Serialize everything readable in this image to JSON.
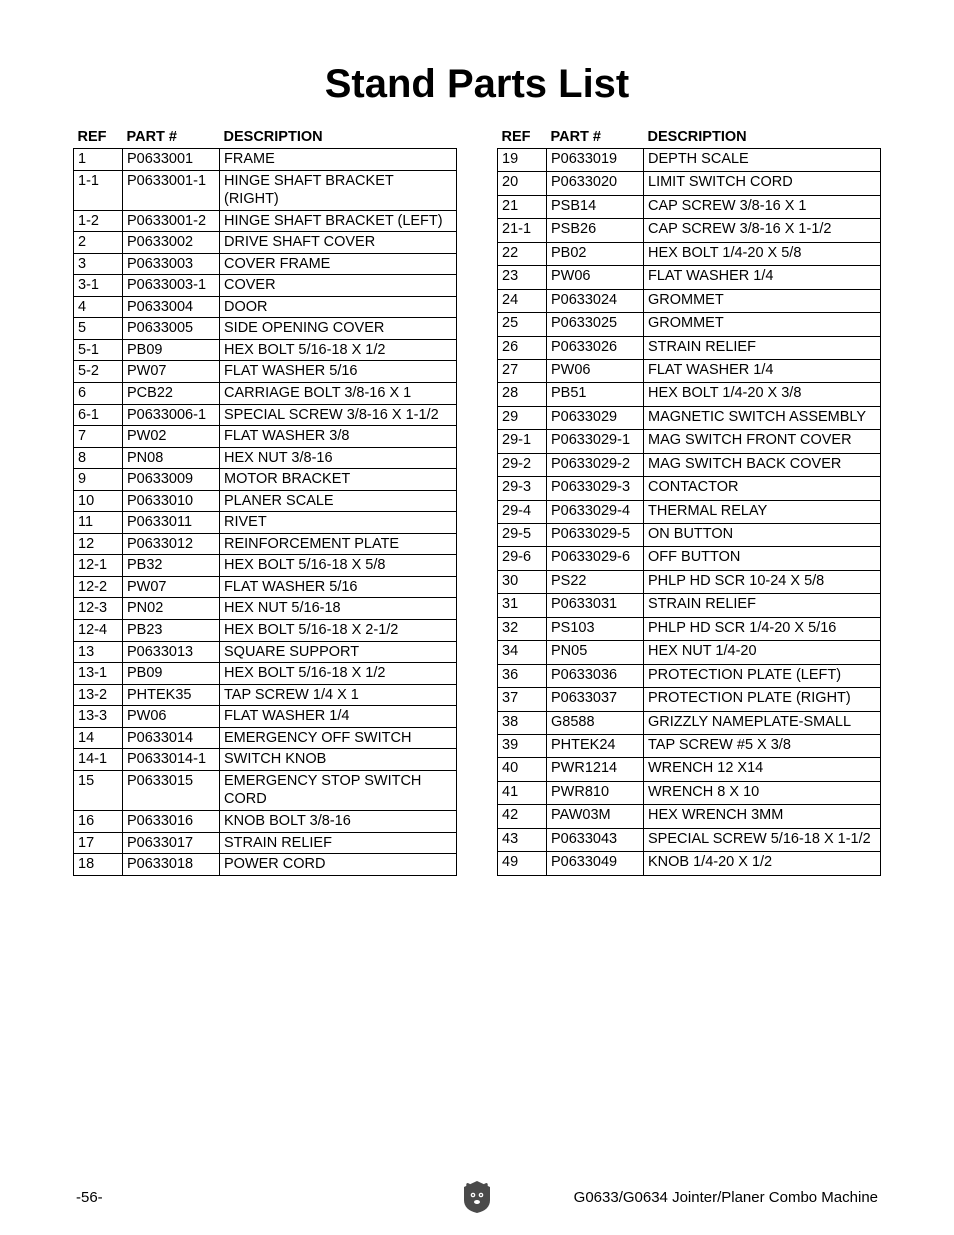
{
  "title": "Stand Parts List",
  "headers": {
    "ref": "REF",
    "part": "PART #",
    "desc": "DESCRIPTION"
  },
  "left_rows": [
    {
      "ref": "1",
      "part": "P0633001",
      "desc": "FRAME"
    },
    {
      "ref": "1-1",
      "part": "P0633001-1",
      "desc": "HINGE SHAFT BRACKET (RIGHT)"
    },
    {
      "ref": "1-2",
      "part": "P0633001-2",
      "desc": "HINGE SHAFT BRACKET (LEFT)"
    },
    {
      "ref": "2",
      "part": "P0633002",
      "desc": "DRIVE SHAFT COVER"
    },
    {
      "ref": "3",
      "part": "P0633003",
      "desc": "COVER FRAME"
    },
    {
      "ref": "3-1",
      "part": "P0633003-1",
      "desc": "COVER"
    },
    {
      "ref": "4",
      "part": "P0633004",
      "desc": "DOOR"
    },
    {
      "ref": "5",
      "part": "P0633005",
      "desc": "SIDE OPENING COVER"
    },
    {
      "ref": "5-1",
      "part": "PB09",
      "desc": "HEX BOLT 5/16-18 X 1/2"
    },
    {
      "ref": "5-2",
      "part": "PW07",
      "desc": "FLAT WASHER 5/16"
    },
    {
      "ref": "6",
      "part": "PCB22",
      "desc": "CARRIAGE BOLT 3/8-16 X 1"
    },
    {
      "ref": "6-1",
      "part": "P0633006-1",
      "desc": "SPECIAL SCREW 3/8-16 X 1-1/2"
    },
    {
      "ref": "7",
      "part": "PW02",
      "desc": "FLAT WASHER 3/8"
    },
    {
      "ref": "8",
      "part": "PN08",
      "desc": "HEX NUT 3/8-16"
    },
    {
      "ref": "9",
      "part": "P0633009",
      "desc": "MOTOR BRACKET"
    },
    {
      "ref": "10",
      "part": "P0633010",
      "desc": "PLANER SCALE"
    },
    {
      "ref": "11",
      "part": "P0633011",
      "desc": "RIVET"
    },
    {
      "ref": "12",
      "part": "P0633012",
      "desc": "REINFORCEMENT PLATE"
    },
    {
      "ref": "12-1",
      "part": "PB32",
      "desc": "HEX BOLT 5/16-18 X 5/8"
    },
    {
      "ref": "12-2",
      "part": "PW07",
      "desc": "FLAT WASHER 5/16"
    },
    {
      "ref": "12-3",
      "part": "PN02",
      "desc": "HEX NUT 5/16-18"
    },
    {
      "ref": "12-4",
      "part": "PB23",
      "desc": "HEX BOLT 5/16-18 X 2-1/2"
    },
    {
      "ref": "13",
      "part": "P0633013",
      "desc": "SQUARE SUPPORT"
    },
    {
      "ref": "13-1",
      "part": "PB09",
      "desc": "HEX BOLT 5/16-18 X 1/2"
    },
    {
      "ref": "13-2",
      "part": "PHTEK35",
      "desc": "TAP SCREW 1/4 X 1"
    },
    {
      "ref": "13-3",
      "part": "PW06",
      "desc": "FLAT WASHER 1/4"
    },
    {
      "ref": "14",
      "part": "P0633014",
      "desc": "EMERGENCY OFF SWITCH"
    },
    {
      "ref": "14-1",
      "part": "P0633014-1",
      "desc": "SWITCH KNOB"
    },
    {
      "ref": "15",
      "part": "P0633015",
      "desc": "EMERGENCY STOP SWITCH CORD"
    },
    {
      "ref": "16",
      "part": "P0633016",
      "desc": "KNOB BOLT 3/8-16"
    },
    {
      "ref": "17",
      "part": "P0633017",
      "desc": "STRAIN RELIEF"
    },
    {
      "ref": "18",
      "part": "P0633018",
      "desc": "POWER CORD"
    }
  ],
  "right_rows": [
    {
      "ref": "19",
      "part": "P0633019",
      "desc": "DEPTH SCALE"
    },
    {
      "ref": "20",
      "part": "P0633020",
      "desc": "LIMIT SWITCH CORD"
    },
    {
      "ref": "21",
      "part": "PSB14",
      "desc": "CAP SCREW 3/8-16 X 1"
    },
    {
      "ref": "21-1",
      "part": "PSB26",
      "desc": "CAP SCREW 3/8-16 X 1-1/2"
    },
    {
      "ref": "22",
      "part": "PB02",
      "desc": "HEX BOLT 1/4-20 X 5/8"
    },
    {
      "ref": "23",
      "part": "PW06",
      "desc": "FLAT WASHER 1/4"
    },
    {
      "ref": "24",
      "part": "P0633024",
      "desc": "GROMMET"
    },
    {
      "ref": "25",
      "part": "P0633025",
      "desc": "GROMMET"
    },
    {
      "ref": "26",
      "part": "P0633026",
      "desc": "STRAIN RELIEF"
    },
    {
      "ref": "27",
      "part": "PW06",
      "desc": "FLAT WASHER 1/4"
    },
    {
      "ref": "28",
      "part": "PB51",
      "desc": "HEX BOLT 1/4-20 X 3/8"
    },
    {
      "ref": "29",
      "part": "P0633029",
      "desc": "MAGNETIC SWITCH ASSEMBLY"
    },
    {
      "ref": "29-1",
      "part": "P0633029-1",
      "desc": "MAG SWITCH FRONT COVER"
    },
    {
      "ref": "29-2",
      "part": "P0633029-2",
      "desc": "MAG SWITCH BACK COVER"
    },
    {
      "ref": "29-3",
      "part": "P0633029-3",
      "desc": "CONTACTOR"
    },
    {
      "ref": "29-4",
      "part": "P0633029-4",
      "desc": "THERMAL RELAY"
    },
    {
      "ref": "29-5",
      "part": "P0633029-5",
      "desc": "ON BUTTON"
    },
    {
      "ref": "29-6",
      "part": "P0633029-6",
      "desc": "OFF BUTTON"
    },
    {
      "ref": "30",
      "part": "PS22",
      "desc": "PHLP HD SCR 10-24 X 5/8"
    },
    {
      "ref": "31",
      "part": "P0633031",
      "desc": "STRAIN RELIEF"
    },
    {
      "ref": "32",
      "part": "PS103",
      "desc": "PHLP HD SCR 1/4-20 X 5/16"
    },
    {
      "ref": "34",
      "part": "PN05",
      "desc": "HEX NUT 1/4-20"
    },
    {
      "ref": "36",
      "part": "P0633036",
      "desc": "PROTECTION PLATE (LEFT)"
    },
    {
      "ref": "37",
      "part": "P0633037",
      "desc": "PROTECTION PLATE (RIGHT)"
    },
    {
      "ref": "38",
      "part": "G8588",
      "desc": "GRIZZLY NAMEPLATE-SMALL"
    },
    {
      "ref": "39",
      "part": "PHTEK24",
      "desc": "TAP SCREW #5 X 3/8"
    },
    {
      "ref": "40",
      "part": "PWR1214",
      "desc": "WRENCH 12 X14"
    },
    {
      "ref": "41",
      "part": "PWR810",
      "desc": "WRENCH 8 X 10"
    },
    {
      "ref": "42",
      "part": "PAW03M",
      "desc": "HEX WRENCH 3MM"
    },
    {
      "ref": "43",
      "part": "P0633043",
      "desc": "SPECIAL SCREW 5/16-18 X 1-1/2"
    },
    {
      "ref": "49",
      "part": "P0633049",
      "desc": "KNOB 1/4-20 X 1/2"
    }
  ],
  "footer": {
    "page_number": "-56-",
    "machine": "G0633/G0634 Jointer/Planer Combo Machine"
  }
}
